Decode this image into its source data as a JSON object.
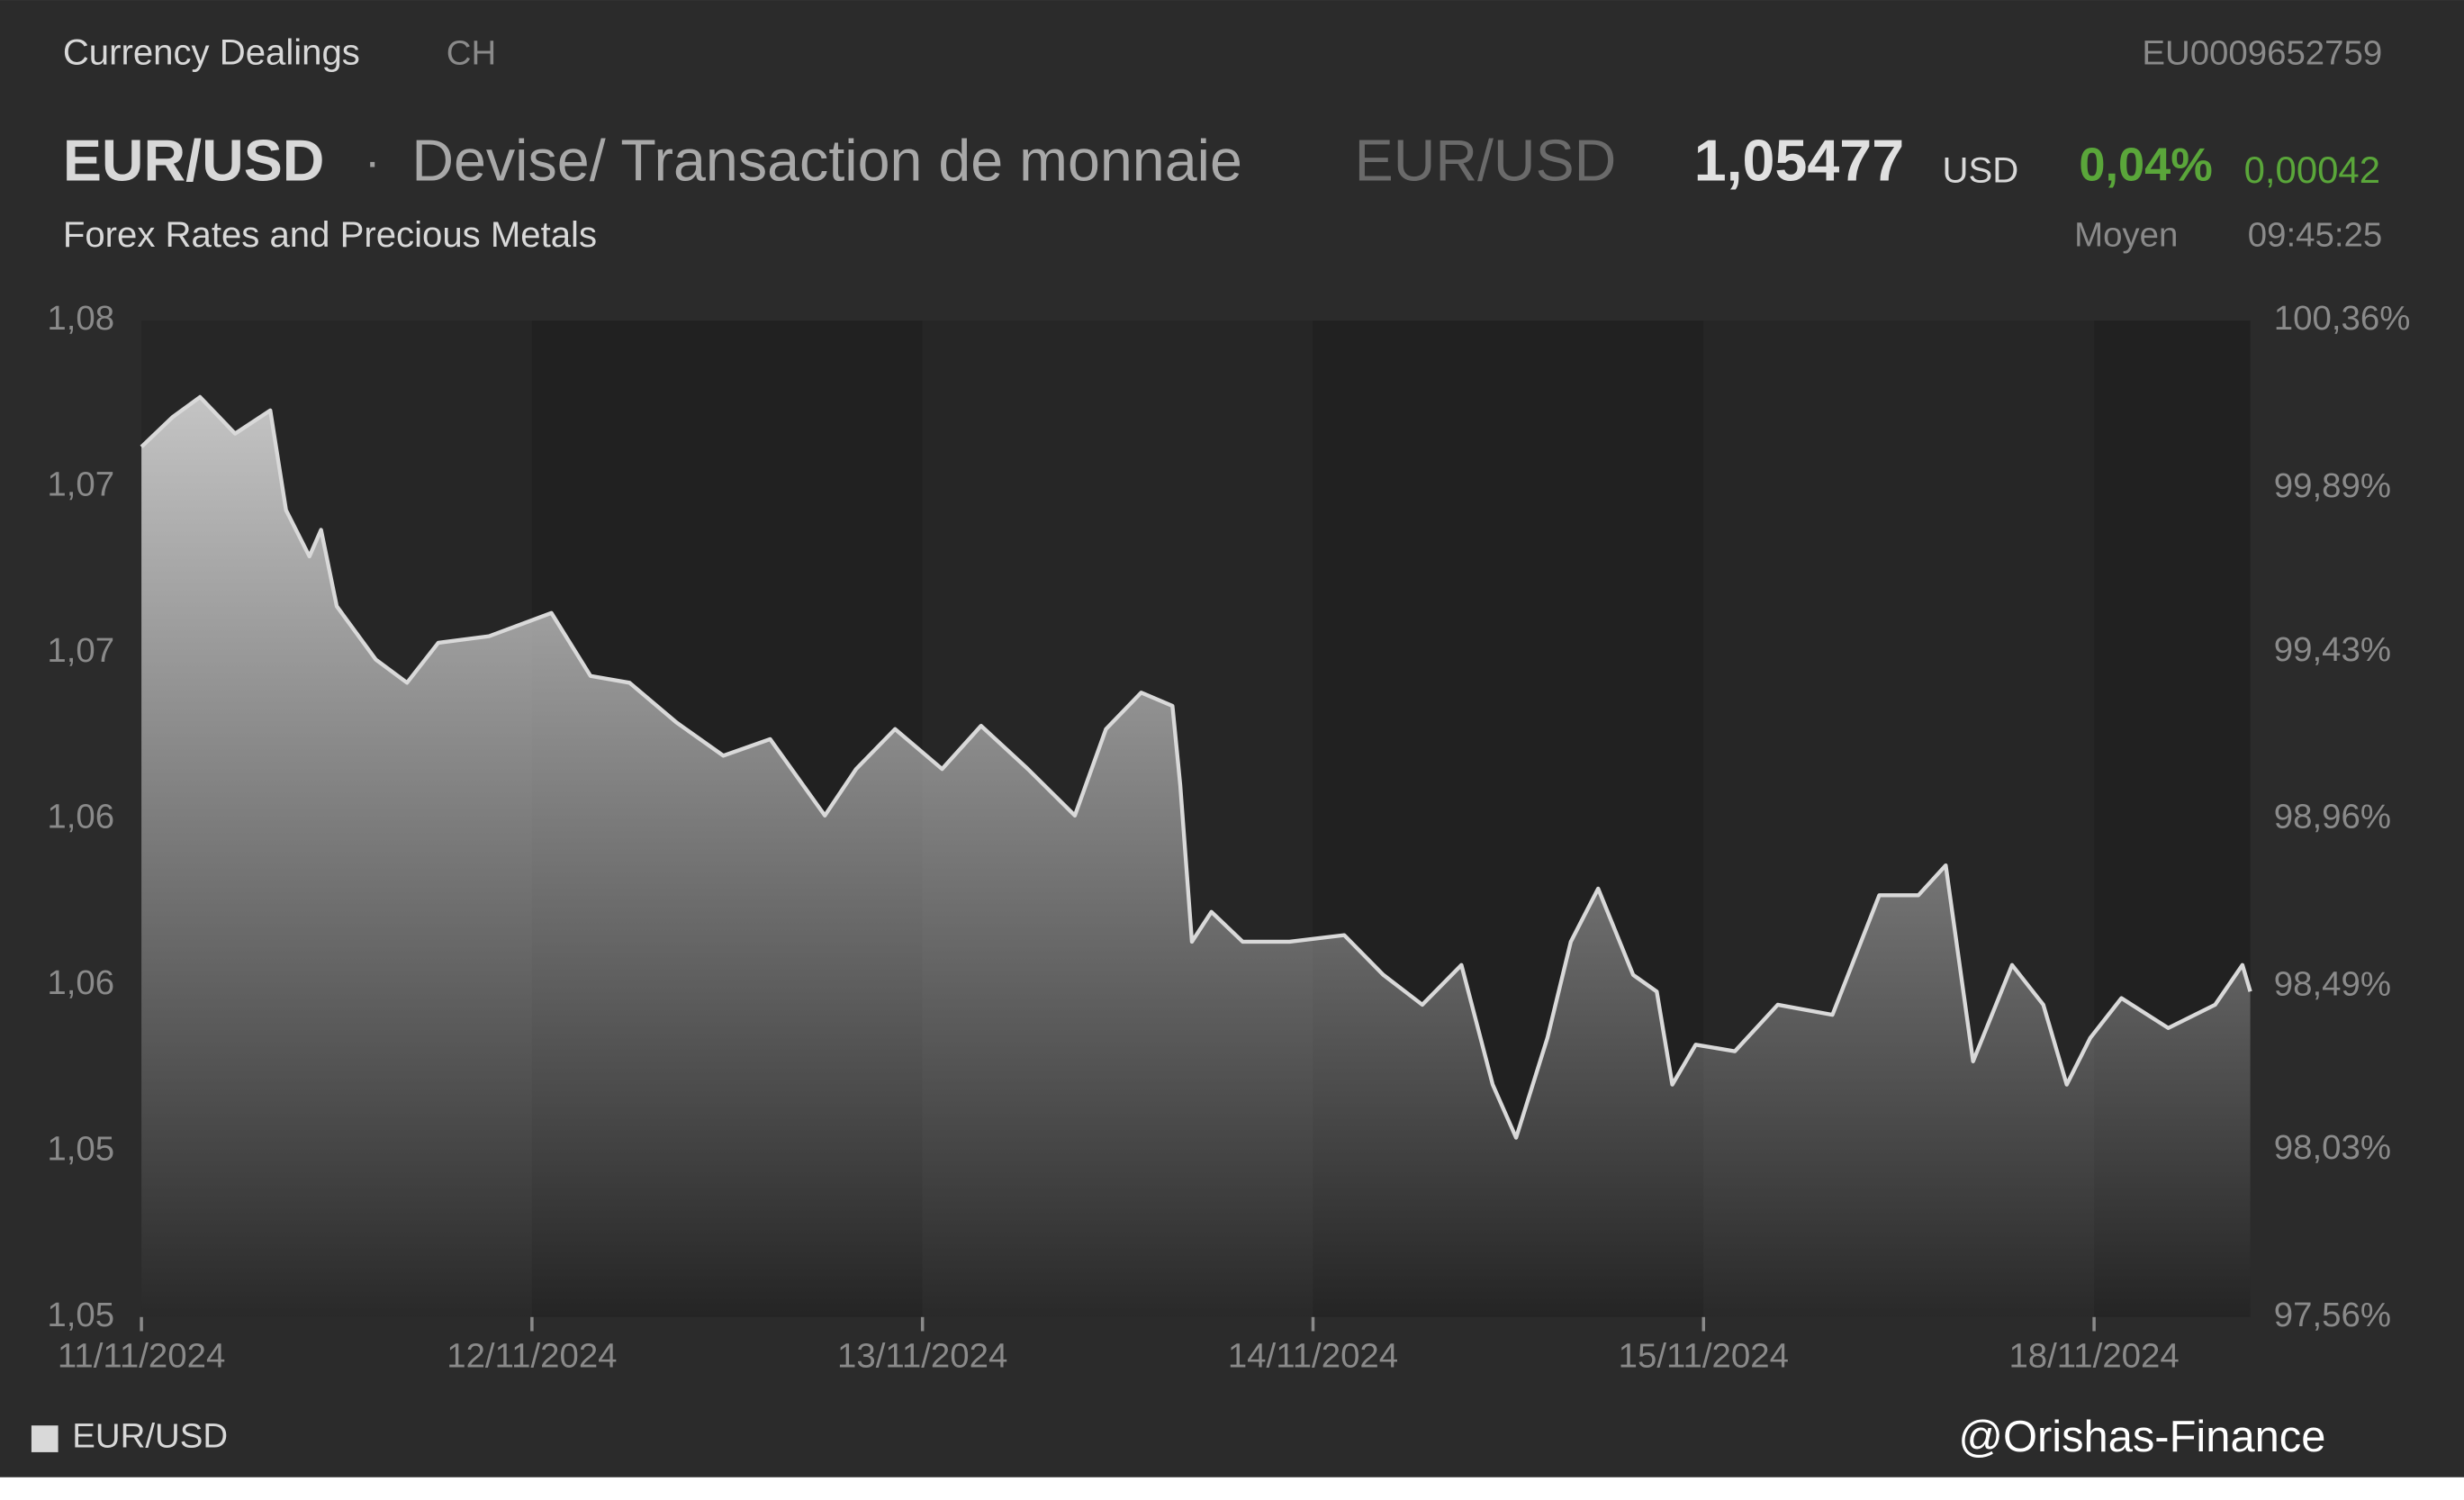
{
  "header": {
    "category": "Currency Dealings",
    "country": "CH",
    "isin": "EU0009652759",
    "symbol": "EUR/USD",
    "separator": "·",
    "description": "Devise/ Transaction de monnaie",
    "symbol_alt": "EUR/USD",
    "price": "1,05477",
    "currency": "USD",
    "change_pct": "0,04%",
    "change_abs": "0,00042",
    "subtitle": "Forex Rates and Precious Metals",
    "quote_type": "Moyen",
    "time": "09:45:25"
  },
  "watermark": "@Orishas-Finance",
  "chart_data": {
    "type": "line",
    "x": [
      0,
      0.08,
      0.15,
      0.24,
      0.33,
      0.37,
      0.43,
      0.46,
      0.5,
      0.6,
      0.68,
      0.76,
      0.89,
      1.05,
      1.15,
      1.25,
      1.37,
      1.49,
      1.61,
      1.75,
      1.83,
      1.93,
      2.05,
      2.15,
      2.27,
      2.39,
      2.47,
      2.56,
      2.64,
      2.66,
      2.69,
      2.74,
      2.82,
      2.94,
      3.08,
      3.18,
      3.28,
      3.38,
      3.46,
      3.52,
      3.6,
      3.66,
      3.73,
      3.82,
      3.88,
      3.92,
      3.98,
      4.08,
      4.19,
      4.33,
      4.45,
      4.55,
      4.62,
      4.69,
      4.79,
      4.87,
      4.93,
      4.99,
      5.07,
      5.19,
      5.31,
      5.38,
      5.4
    ],
    "series": [
      {
        "name": "EUR/USD",
        "color": "#d9d9d9",
        "values": [
          1.0762,
          1.0771,
          1.0777,
          1.0766,
          1.0773,
          1.0743,
          1.0729,
          1.0737,
          1.0714,
          1.0698,
          1.0691,
          1.0703,
          1.0705,
          1.0712,
          1.0693,
          1.0691,
          1.0679,
          1.0669,
          1.0674,
          1.0651,
          1.0665,
          1.0677,
          1.0665,
          1.0678,
          1.0665,
          1.0651,
          1.0677,
          1.0688,
          1.0684,
          1.066,
          1.0613,
          1.0622,
          1.0613,
          1.0613,
          1.0615,
          1.0603,
          1.0594,
          1.0606,
          1.057,
          1.0554,
          1.0584,
          1.0613,
          1.0629,
          1.0603,
          1.0598,
          1.057,
          1.0582,
          1.058,
          1.0594,
          1.0591,
          1.0627,
          1.0627,
          1.0636,
          1.0577,
          1.0606,
          1.0594,
          1.057,
          1.0584,
          1.0596,
          1.0587,
          1.0594,
          1.0606,
          1.0598
        ]
      }
    ],
    "xlim": [
      0,
      5.4
    ],
    "xticks": [
      {
        "value": 0,
        "label": "11/11/2024"
      },
      {
        "value": 1,
        "label": "12/11/2024"
      },
      {
        "value": 2,
        "label": "13/11/2024"
      },
      {
        "value": 3,
        "label": "14/11/2024"
      },
      {
        "value": 4,
        "label": "15/11/2024"
      },
      {
        "value": 5,
        "label": "18/11/2024"
      }
    ],
    "ylim": [
      1.05,
      1.08
    ],
    "yticks": [
      {
        "value": 1.05,
        "label": "1,05"
      },
      {
        "value": 1.055,
        "label": "1,05"
      },
      {
        "value": 1.06,
        "label": "1,06"
      },
      {
        "value": 1.065,
        "label": "1,06"
      },
      {
        "value": 1.07,
        "label": "1,07"
      },
      {
        "value": 1.075,
        "label": "1,07"
      },
      {
        "value": 1.08,
        "label": "1,08"
      }
    ],
    "y2lim": [
      97.56,
      100.36
    ],
    "y2ticks": [
      {
        "value": 97.56,
        "label": "97,56%"
      },
      {
        "value": 98.03,
        "label": "98,03%"
      },
      {
        "value": 98.49,
        "label": "98,49%"
      },
      {
        "value": 98.96,
        "label": "98,96%"
      },
      {
        "value": 99.43,
        "label": "99,43%"
      },
      {
        "value": 99.89,
        "label": "99,89%"
      },
      {
        "value": 100.36,
        "label": "100,36%"
      }
    ],
    "legend": "bottom-left"
  }
}
